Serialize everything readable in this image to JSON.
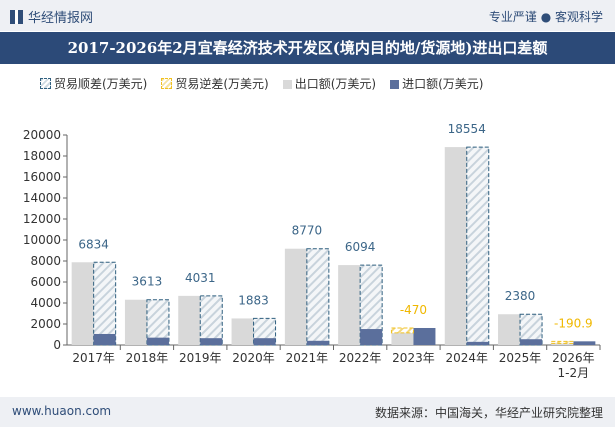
{
  "header": {
    "logo_text": "华经情报网",
    "slogan": "专业严谨 ● 客观科学"
  },
  "title": "2017-2026年2月宜春经济技术开发区(境内目的地/货源地)进出口差额",
  "legend": [
    "贸易顺差(万美元)",
    "贸易逆差(万美元)",
    "出口额(万美元)",
    "进口额(万美元)"
  ],
  "colors": {
    "surplus": "#2f5f7f",
    "deficit": "#f0c020",
    "export": "#d9d9d9",
    "import": "#5b6f9c"
  },
  "chart_data": {
    "type": "bar",
    "categories": [
      "2017年",
      "2018年",
      "2019年",
      "2020年",
      "2021年",
      "2022年",
      "2023年",
      "2024年",
      "2025年",
      "2026年\n1-2月"
    ],
    "series": [
      {
        "name": "出口额(万美元)",
        "values": [
          7880,
          4310,
          4680,
          2530,
          9170,
          7610,
          1150,
          18850,
          2930,
          160
        ]
      },
      {
        "name": "进口额(万美元)",
        "values": [
          1050,
          700,
          650,
          650,
          400,
          1520,
          1620,
          300,
          550,
          350
        ]
      },
      {
        "values": [
          6834,
          3613,
          4031,
          1883,
          8770,
          6094,
          -470,
          18554,
          2380,
          -190.9
        ]
      }
    ],
    "data_labels": [
      "6834",
      "3613",
      "4031",
      "1883",
      "8770",
      "6094",
      "-470",
      "18554",
      "2380",
      "-190.9"
    ],
    "yticks": [
      "0",
      "2000",
      "4000",
      "6000",
      "8000",
      "10000",
      "12000",
      "14000",
      "16000",
      "18000",
      "20000"
    ],
    "ylim": [
      0,
      20000
    ],
    "grid": false,
    "legend_position": "top"
  },
  "footer": {
    "website": "www.huaon.com",
    "source": "数据来源：中国海关，华经产业研究院整理"
  }
}
